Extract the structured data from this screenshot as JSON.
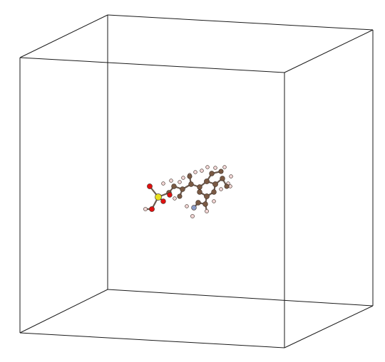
{
  "scene": {
    "background_color": "#ffffff",
    "cell_line_color": "#1a1a1a"
  },
  "element_colors": {
    "C": "#7a5a44",
    "H": "#f2d6d6",
    "O": "#e01010",
    "S": "#e8e020",
    "N": "#8a9cc8"
  }
}
